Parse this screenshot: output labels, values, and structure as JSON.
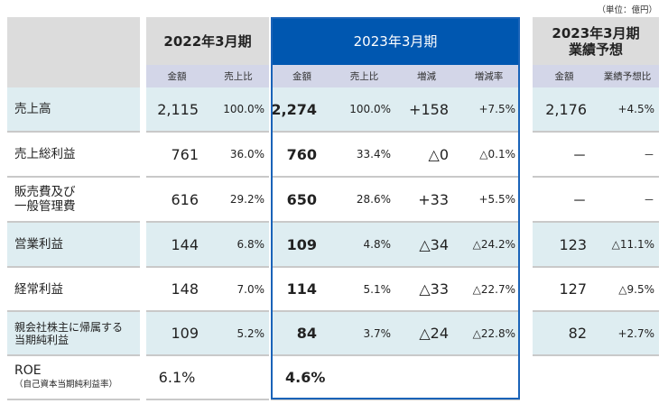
{
  "unit_label": "（単位：億円）",
  "header": {
    "fy2022": "2022年3月期",
    "fy2023": "2023年3月期",
    "forecast_line1": "2023年3月期",
    "forecast_line2": "業績予想"
  },
  "subheader": {
    "amount": "金額",
    "ratio": "売上比",
    "change": "増減",
    "change_rate": "増減率",
    "forecast_amount": "金額",
    "forecast_ratio": "業績予想比"
  },
  "rows": [
    {
      "label": "売上高",
      "label2": "",
      "a22": "2,115",
      "r22": "100.0%",
      "a23": "2,274",
      "r23": "100.0%",
      "chg": "+158",
      "rate": "+7.5%",
      "fa": "2,176",
      "fr": "+4.5%",
      "shade": true
    },
    {
      "label": "売上総利益",
      "label2": "",
      "a22": "761",
      "r22": "36.0%",
      "a23": "760",
      "r23": "33.4%",
      "chg": "△0",
      "rate": "△0.1%",
      "fa": "－",
      "fr": "－",
      "shade": false
    },
    {
      "label": "販売費及び",
      "label2": "一般管理費",
      "a22": "616",
      "r22": "29.2%",
      "a23": "650",
      "r23": "28.6%",
      "chg": "+33",
      "rate": "+5.5%",
      "fa": "－",
      "fr": "－",
      "shade": false
    },
    {
      "label": "営業利益",
      "label2": "",
      "a22": "144",
      "r22": "6.8%",
      "a23": "109",
      "r23": "4.8%",
      "chg": "△34",
      "rate": "△24.2%",
      "fa": "123",
      "fr": "△11.1%",
      "shade": true
    },
    {
      "label": "経常利益",
      "label2": "",
      "a22": "148",
      "r22": "7.0%",
      "a23": "114",
      "r23": "5.1%",
      "chg": "△33",
      "rate": "△22.7%",
      "fa": "127",
      "fr": "△9.5%",
      "shade": false
    },
    {
      "label": "親会社株主に帰属する",
      "label2": "当期純利益",
      "a22": "109",
      "r22": "5.2%",
      "a23": "84",
      "r23": "3.7%",
      "chg": "△24",
      "rate": "△22.8%",
      "fa": "82",
      "fr": "+2.7%",
      "shade": true,
      "small": true
    },
    {
      "label": "ROE",
      "label2": "（自己資本当期純利益率）",
      "a22": "6.1%",
      "r22": "",
      "a23": "4.6%",
      "r23": "",
      "chg": "",
      "rate": "",
      "fa": "",
      "fr": "",
      "shade": false,
      "roe": true
    }
  ]
}
